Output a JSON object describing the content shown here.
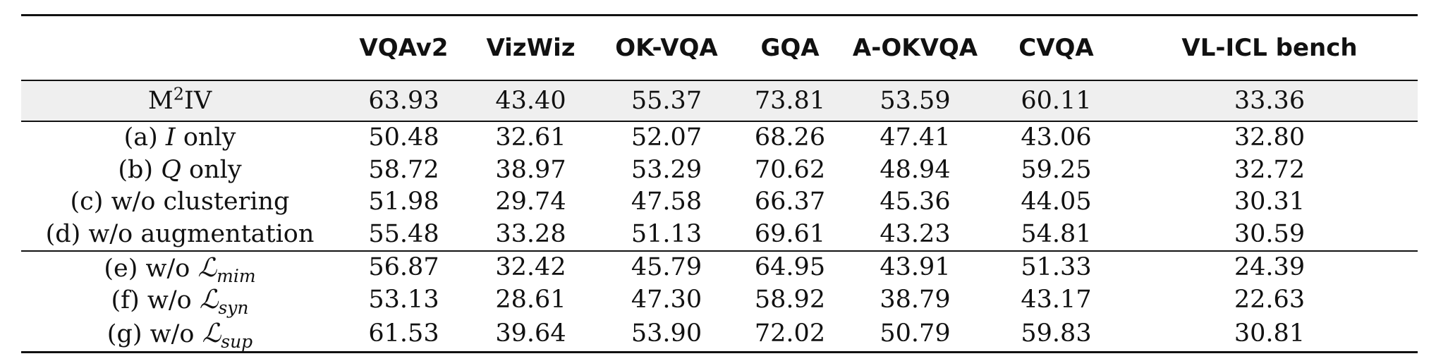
{
  "columns": [
    "VQAv2",
    "VizWiz",
    "OK-VQA",
    "GQA",
    "A-OKVQA",
    "CVQA",
    "VL-ICL bench"
  ],
  "main_row": {
    "method_base": "M",
    "method_sup": "2",
    "method_rest": "IV",
    "values": [
      "63.93",
      "43.40",
      "55.37",
      "73.81",
      "53.59",
      "60.11",
      "33.36"
    ]
  },
  "rows": [
    {
      "prefix": "(a) ",
      "ital": "I",
      "suffix": " only",
      "values": [
        "50.48",
        "32.61",
        "52.07",
        "68.26",
        "47.41",
        "43.06",
        "32.80"
      ]
    },
    {
      "prefix": "(b) ",
      "ital": "Q",
      "suffix": " only",
      "values": [
        "58.72",
        "38.97",
        "53.29",
        "70.62",
        "48.94",
        "59.25",
        "32.72"
      ]
    },
    {
      "label": "(c) w/o clustering",
      "values": [
        "51.98",
        "29.74",
        "47.58",
        "66.37",
        "45.36",
        "44.05",
        "30.31"
      ]
    },
    {
      "label": "(d) w/o augmentation",
      "values": [
        "55.48",
        "33.28",
        "51.13",
        "69.61",
        "43.23",
        "54.81",
        "30.59"
      ]
    },
    {
      "prefix": "(e) w/o ",
      "script": "ℒ",
      "sub": "mim",
      "values": [
        "56.87",
        "32.42",
        "45.79",
        "64.95",
        "43.91",
        "51.33",
        "24.39"
      ]
    },
    {
      "prefix": "(f) w/o ",
      "script": "ℒ",
      "sub": "syn",
      "values": [
        "53.13",
        "28.61",
        "47.30",
        "58.92",
        "38.79",
        "43.17",
        "22.63"
      ]
    },
    {
      "prefix": "(g) w/o ",
      "script": "ℒ",
      "sub": "sup",
      "values": [
        "61.53",
        "39.64",
        "53.90",
        "72.02",
        "50.79",
        "59.83",
        "30.81"
      ]
    }
  ]
}
